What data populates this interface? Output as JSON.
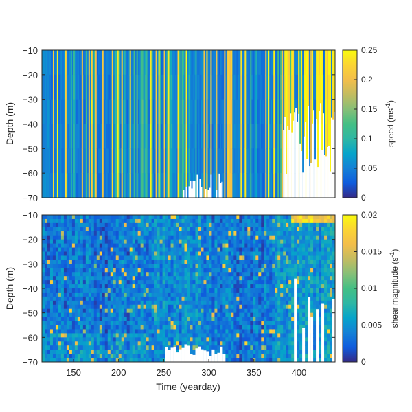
{
  "chart_data": [
    {
      "type": "heatmap",
      "title": "",
      "xlabel": "",
      "ylabel": "Depth (m)",
      "xlim": [
        115,
        440
      ],
      "ylim": [
        -70,
        -10
      ],
      "yticks": [
        -10,
        -20,
        -30,
        -40,
        -50,
        -60,
        -70
      ],
      "colorbar": {
        "label": "speed (ms",
        "label_sup": "-1",
        "label_end": ")",
        "clim": [
          0,
          0.25
        ],
        "ticks": [
          0.25,
          0.2,
          0.15,
          0.1,
          0.05,
          0
        ],
        "colormap": "parula"
      }
    },
    {
      "type": "heatmap",
      "title": "",
      "xlabel": "Time (yearday)",
      "ylabel": "Depth (m)",
      "xlim": [
        115,
        440
      ],
      "ylim": [
        -70,
        -10
      ],
      "xticks": [
        150,
        200,
        250,
        300,
        350,
        400
      ],
      "yticks": [
        -10,
        -20,
        -30,
        -40,
        -50,
        -60,
        -70
      ],
      "colorbar": {
        "label": "shear magnitude (s",
        "label_sup": "-1",
        "label_end": ")",
        "clim": [
          0,
          0.02
        ],
        "ticks": [
          0.02,
          0.015,
          0.01,
          0.005,
          0
        ],
        "colormap": "parula"
      }
    }
  ]
}
